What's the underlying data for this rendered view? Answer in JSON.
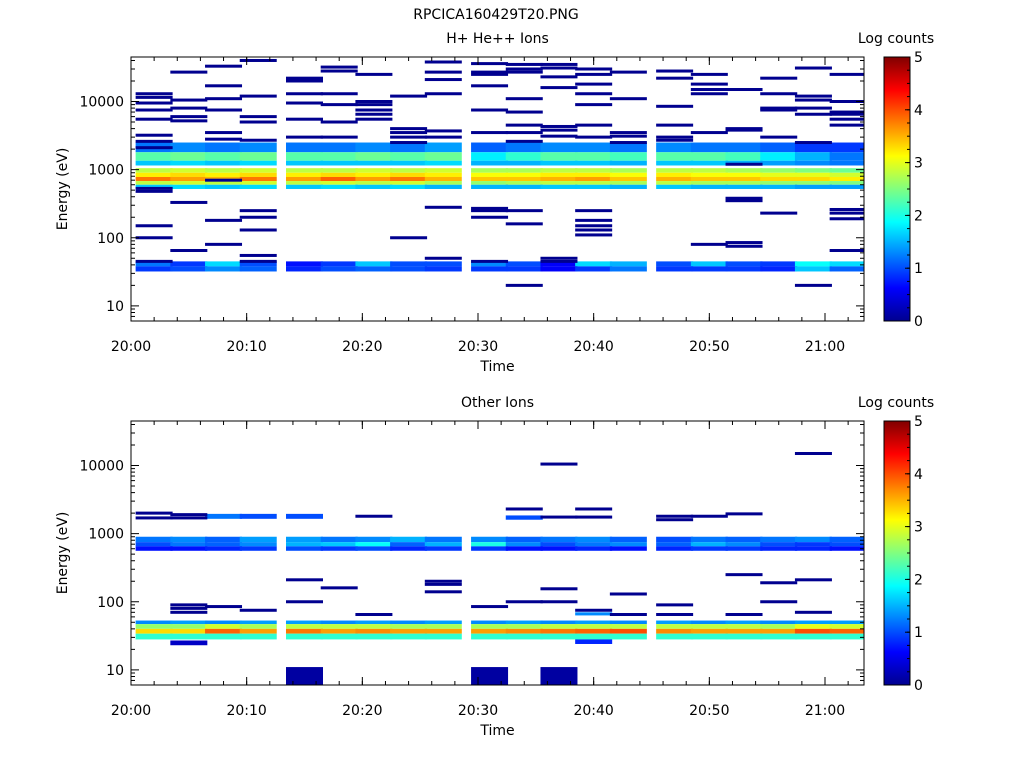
{
  "page": {
    "title": "RPCICA160429T20.PNG"
  },
  "colormap": [
    "#00008f",
    "#0000ff",
    "#0080ff",
    "#00ffff",
    "#80ff80",
    "#ffff00",
    "#ff8000",
    "#ff0000",
    "#800000"
  ],
  "chart_data": [
    {
      "type": "heatmap",
      "title": "H+ He++ Ions",
      "xlabel": "Time",
      "ylabel": "Energy (eV)",
      "x_ticks": [
        "20:00",
        "20:10",
        "20:20",
        "20:30",
        "20:40",
        "20:50",
        "21:00"
      ],
      "y_ticks": [
        "10",
        "100",
        "1000",
        "10000"
      ],
      "y_scale": "log",
      "ylim": [
        6,
        45000
      ],
      "colorbar": {
        "label": "Log counts",
        "ticks": [
          "0",
          "1",
          "2",
          "3",
          "4",
          "5"
        ],
        "range": [
          0,
          5
        ]
      },
      "time_bins": [
        "20:02",
        "20:05",
        "20:08",
        "20:11",
        "20:15",
        "20:18",
        "20:21",
        "20:24",
        "20:27",
        "20:31",
        "20:34",
        "20:37",
        "20:40",
        "20:43",
        "20:47",
        "20:50",
        "20:53",
        "20:56",
        "20:59",
        "21:02"
      ],
      "bands": [
        {
          "e_lo": 1800,
          "e_hi": 2500,
          "values": [
            1.2,
            1.3,
            1.2,
            1.3,
            1.2,
            1.2,
            1.3,
            1.2,
            1.4,
            1.1,
            1.2,
            1.3,
            1.3,
            1.2,
            1.3,
            1.2,
            1.2,
            1.1,
            0.9,
            0.9
          ]
        },
        {
          "e_lo": 1350,
          "e_hi": 1800,
          "values": [
            2.3,
            2.4,
            2.3,
            2.4,
            2.3,
            2.3,
            2.4,
            2.3,
            2.4,
            1.8,
            2.1,
            2.3,
            2.3,
            2.2,
            2.3,
            2.3,
            2.2,
            1.8,
            1.5,
            1.2
          ]
        },
        {
          "e_lo": 1150,
          "e_hi": 1350,
          "values": [
            1.6,
            1.7,
            1.6,
            1.7,
            1.6,
            1.6,
            1.6,
            1.6,
            1.7,
            1.5,
            1.5,
            1.6,
            1.6,
            1.5,
            1.6,
            1.6,
            1.5,
            1.4,
            1.3,
            1.2
          ]
        },
        {
          "e_lo": 900,
          "e_hi": 1050,
          "values": [
            2.8,
            2.9,
            2.8,
            2.9,
            2.8,
            2.8,
            2.9,
            2.8,
            2.9,
            2.7,
            2.7,
            2.8,
            2.8,
            2.7,
            2.8,
            2.8,
            2.7,
            2.6,
            2.5,
            2.4
          ]
        },
        {
          "e_lo": 780,
          "e_hi": 900,
          "values": [
            3.2,
            3.3,
            3.2,
            3.3,
            3.2,
            3.3,
            3.2,
            3.3,
            3.2,
            3.1,
            3.1,
            3.2,
            3.2,
            3.1,
            3.2,
            3.1,
            3.1,
            3.0,
            3.0,
            2.9
          ]
        },
        {
          "e_lo": 680,
          "e_hi": 780,
          "values": [
            3.8,
            3.6,
            3.5,
            3.8,
            3.6,
            3.9,
            3.6,
            3.8,
            3.5,
            3.4,
            3.4,
            3.5,
            3.6,
            3.4,
            3.5,
            3.4,
            3.4,
            3.3,
            3.3,
            3.2
          ]
        },
        {
          "e_lo": 600,
          "e_hi": 680,
          "values": [
            2.8,
            2.9,
            2.8,
            2.9,
            2.8,
            2.9,
            2.8,
            2.9,
            2.7,
            2.6,
            2.7,
            2.8,
            2.8,
            2.7,
            2.8,
            2.7,
            2.7,
            2.6,
            2.6,
            2.5
          ]
        },
        {
          "e_lo": 520,
          "e_hi": 600,
          "values": [
            1.6,
            1.7,
            1.6,
            1.7,
            1.6,
            1.7,
            1.6,
            1.7,
            1.5,
            1.5,
            1.5,
            1.6,
            1.6,
            1.5,
            1.6,
            1.5,
            1.5,
            1.5,
            1.4,
            1.4
          ]
        },
        {
          "e_lo": 38,
          "e_hi": 45,
          "values": [
            1.2,
            0.9,
            1.7,
            1.0,
            0.7,
            0.9,
            1.6,
            1.0,
            1.0,
            1.3,
            1.0,
            0.6,
            1.7,
            1.5,
            1.0,
            1.6,
            1.0,
            0.9,
            1.9,
            1.7
          ]
        },
        {
          "e_lo": 32,
          "e_hi": 38,
          "values": [
            0.9,
            1.0,
            1.3,
            1.1,
            0.8,
            1.0,
            1.1,
            1.0,
            0.9,
            0.9,
            0.9,
            0.6,
            0.9,
            1.2,
            0.9,
            0.9,
            0.9,
            0.8,
            1.6,
            1.1
          ]
        }
      ],
      "sparse_lines": [
        {
          "bin": 0,
          "energies": [
            13000,
            11500,
            9500,
            7500,
            5500,
            3200,
            2600,
            2100,
            530,
            480,
            150,
            100,
            45
          ]
        },
        {
          "bin": 1,
          "energies": [
            27000,
            10500,
            8000,
            6000,
            5200,
            330,
            65
          ]
        },
        {
          "bin": 2,
          "energies": [
            33000,
            17000,
            11000,
            7500,
            3500,
            2800,
            700,
            180,
            80
          ]
        },
        {
          "bin": 3,
          "energies": [
            40000,
            12000,
            6000,
            5000,
            2700,
            250,
            200,
            130,
            55,
            45
          ]
        },
        {
          "bin": 4,
          "energies": [
            22000,
            20000,
            13000,
            9500,
            5500,
            3000
          ]
        },
        {
          "bin": 5,
          "energies": [
            32000,
            28000,
            13000,
            9000,
            5000,
            3000
          ]
        },
        {
          "bin": 6,
          "energies": [
            25000,
            10000,
            9000,
            7500,
            6500,
            5500
          ]
        },
        {
          "bin": 7,
          "energies": [
            12000,
            4000,
            3500,
            3000,
            2500,
            100
          ]
        },
        {
          "bin": 8,
          "energies": [
            38000,
            27000,
            21000,
            13000,
            3700,
            3000,
            280,
            50
          ]
        },
        {
          "bin": 9,
          "energies": [
            36000,
            27000,
            25000,
            17000,
            7500,
            3500,
            270,
            250,
            200,
            45
          ]
        },
        {
          "bin": 10,
          "energies": [
            35000,
            30000,
            27000,
            11000,
            7000,
            4500,
            3500,
            2600,
            250,
            160,
            20
          ]
        },
        {
          "bin": 11,
          "energies": [
            35000,
            31000,
            23000,
            16000,
            4300,
            3800,
            3100,
            50,
            45
          ]
        },
        {
          "bin": 12,
          "energies": [
            30000,
            25000,
            18000,
            13000,
            9000,
            4500,
            3000,
            250,
            180,
            150,
            130,
            110
          ]
        },
        {
          "bin": 13,
          "energies": [
            27000,
            11000,
            3500,
            3100,
            2500
          ]
        },
        {
          "bin": 14,
          "energies": [
            28000,
            22000,
            8500,
            4500,
            3000,
            2700
          ]
        },
        {
          "bin": 15,
          "energies": [
            25000,
            18000,
            15000,
            13000,
            3500,
            80
          ]
        },
        {
          "bin": 16,
          "energies": [
            15000,
            4000,
            3800,
            1200,
            380,
            350,
            85,
            75
          ]
        },
        {
          "bin": 17,
          "energies": [
            22000,
            13000,
            8000,
            7500,
            3000,
            230
          ]
        },
        {
          "bin": 18,
          "energies": [
            31000,
            12000,
            10500,
            8000,
            6500,
            2500,
            20
          ]
        },
        {
          "bin": 19,
          "energies": [
            25000,
            10000,
            7000,
            6500,
            5500,
            4500,
            260,
            230,
            190,
            65
          ]
        }
      ]
    },
    {
      "type": "heatmap",
      "title": "Other Ions",
      "xlabel": "Time",
      "ylabel": "Energy (eV)",
      "x_ticks": [
        "20:00",
        "20:10",
        "20:20",
        "20:30",
        "20:40",
        "20:50",
        "21:00"
      ],
      "y_ticks": [
        "10",
        "100",
        "1000",
        "10000"
      ],
      "y_scale": "log",
      "ylim": [
        6,
        45000
      ],
      "colorbar": {
        "label": "Log counts",
        "ticks": [
          "0",
          "1",
          "2",
          "3",
          "4",
          "5"
        ],
        "range": [
          0,
          5
        ]
      },
      "time_bins": [
        "20:02",
        "20:05",
        "20:08",
        "20:11",
        "20:15",
        "20:18",
        "20:21",
        "20:24",
        "20:27",
        "20:31",
        "20:34",
        "20:37",
        "20:40",
        "20:43",
        "20:47",
        "20:50",
        "20:53",
        "20:56",
        "20:59",
        "21:02"
      ],
      "bands": [
        {
          "e_lo": 750,
          "e_hi": 900,
          "values": [
            1.2,
            1.3,
            1.1,
            1.4,
            1.4,
            1.2,
            1.3,
            1.5,
            1.2,
            1.3,
            1.1,
            1.2,
            1.3,
            1.1,
            1.0,
            1.2,
            1.1,
            1.2,
            1.3,
            1.1
          ]
        },
        {
          "e_lo": 650,
          "e_hi": 750,
          "values": [
            1.0,
            1.2,
            1.1,
            1.3,
            1.5,
            1.6,
            1.9,
            1.1,
            1.5,
            2.0,
            1.3,
            1.0,
            1.2,
            1.3,
            1.1,
            1.5,
            1.3,
            1.0,
            0.9,
            1.0
          ]
        },
        {
          "e_lo": 560,
          "e_hi": 650,
          "values": [
            0.7,
            0.7,
            0.8,
            0.9,
            1.0,
            0.9,
            1.0,
            0.8,
            0.9,
            0.9,
            0.7,
            0.7,
            0.8,
            0.7,
            0.8,
            0.9,
            0.9,
            0.8,
            0.8,
            0.7
          ]
        },
        {
          "e_lo": 47,
          "e_hi": 53,
          "values": [
            1.3,
            1.4,
            1.3,
            1.4,
            1.4,
            1.3,
            1.4,
            1.3,
            1.4,
            1.3,
            1.4,
            1.3,
            1.4,
            1.3,
            1.4,
            1.3,
            1.4,
            1.3,
            1.4,
            1.4
          ]
        },
        {
          "e_lo": 40,
          "e_hi": 47,
          "values": [
            2.6,
            2.6,
            2.9,
            2.7,
            2.8,
            2.8,
            2.8,
            2.7,
            2.7,
            2.7,
            2.7,
            2.8,
            2.8,
            2.8,
            2.8,
            2.8,
            2.8,
            2.7,
            3.0,
            2.9
          ]
        },
        {
          "e_lo": 34,
          "e_hi": 40,
          "values": [
            3.3,
            3.3,
            3.9,
            3.6,
            3.8,
            3.6,
            3.7,
            3.6,
            3.6,
            3.6,
            3.7,
            3.8,
            3.9,
            4.0,
            3.7,
            3.6,
            3.6,
            3.6,
            4.0,
            3.9
          ]
        },
        {
          "e_lo": 28,
          "e_hi": 34,
          "values": [
            2.1,
            2.1,
            2.1,
            2.1,
            2.1,
            2.1,
            2.1,
            2.1,
            2.1,
            2.1,
            2.1,
            2.1,
            2.1,
            2.1,
            2.1,
            2.1,
            2.1,
            2.1,
            2.1,
            2.1
          ]
        }
      ],
      "blocks": [
        {
          "bin": 1,
          "e_lo": 23,
          "e_hi": 27,
          "value": 0.3
        },
        {
          "bin": 4,
          "e_lo": 6,
          "e_hi": 11,
          "value": 0.1
        },
        {
          "bin": 9,
          "e_lo": 6,
          "e_hi": 11,
          "value": 0.1
        },
        {
          "bin": 11,
          "e_lo": 6,
          "e_hi": 11,
          "value": 0.1
        },
        {
          "bin": 12,
          "e_lo": 24,
          "e_hi": 28,
          "value": 0.8
        },
        {
          "bin": 12,
          "e_lo": 63,
          "e_hi": 70,
          "value": 1.3
        },
        {
          "bin": 10,
          "e_lo": 1600,
          "e_hi": 1850,
          "value": 1.0
        },
        {
          "bin": 4,
          "e_lo": 1650,
          "e_hi": 1950,
          "value": 1.0
        },
        {
          "bin": 2,
          "e_lo": 1650,
          "e_hi": 1950,
          "value": 1.2
        },
        {
          "bin": 3,
          "e_lo": 1650,
          "e_hi": 1950,
          "value": 1.0
        }
      ],
      "sparse_lines": [
        {
          "bin": 0,
          "energies": [
            2000,
            1700
          ]
        },
        {
          "bin": 1,
          "energies": [
            1900,
            1700,
            90,
            80,
            70
          ]
        },
        {
          "bin": 2,
          "energies": [
            85
          ]
        },
        {
          "bin": 3,
          "energies": [
            75
          ]
        },
        {
          "bin": 4,
          "energies": [
            210,
            100
          ]
        },
        {
          "bin": 5,
          "energies": [
            160
          ]
        },
        {
          "bin": 6,
          "energies": [
            1800,
            65
          ]
        },
        {
          "bin": 8,
          "energies": [
            200,
            180,
            140
          ]
        },
        {
          "bin": 9,
          "energies": [
            85
          ]
        },
        {
          "bin": 10,
          "energies": [
            2300,
            100
          ]
        },
        {
          "bin": 11,
          "energies": [
            10500,
            1750,
            155,
            100
          ]
        },
        {
          "bin": 12,
          "energies": [
            2300,
            1750,
            75
          ]
        },
        {
          "bin": 13,
          "energies": [
            130,
            65
          ]
        },
        {
          "bin": 14,
          "energies": [
            1800,
            1600,
            90,
            65
          ]
        },
        {
          "bin": 15,
          "energies": [
            1800
          ]
        },
        {
          "bin": 16,
          "energies": [
            1950,
            250,
            65
          ]
        },
        {
          "bin": 17,
          "energies": [
            190,
            100
          ]
        },
        {
          "bin": 18,
          "energies": [
            15000,
            210,
            70
          ]
        }
      ]
    }
  ]
}
